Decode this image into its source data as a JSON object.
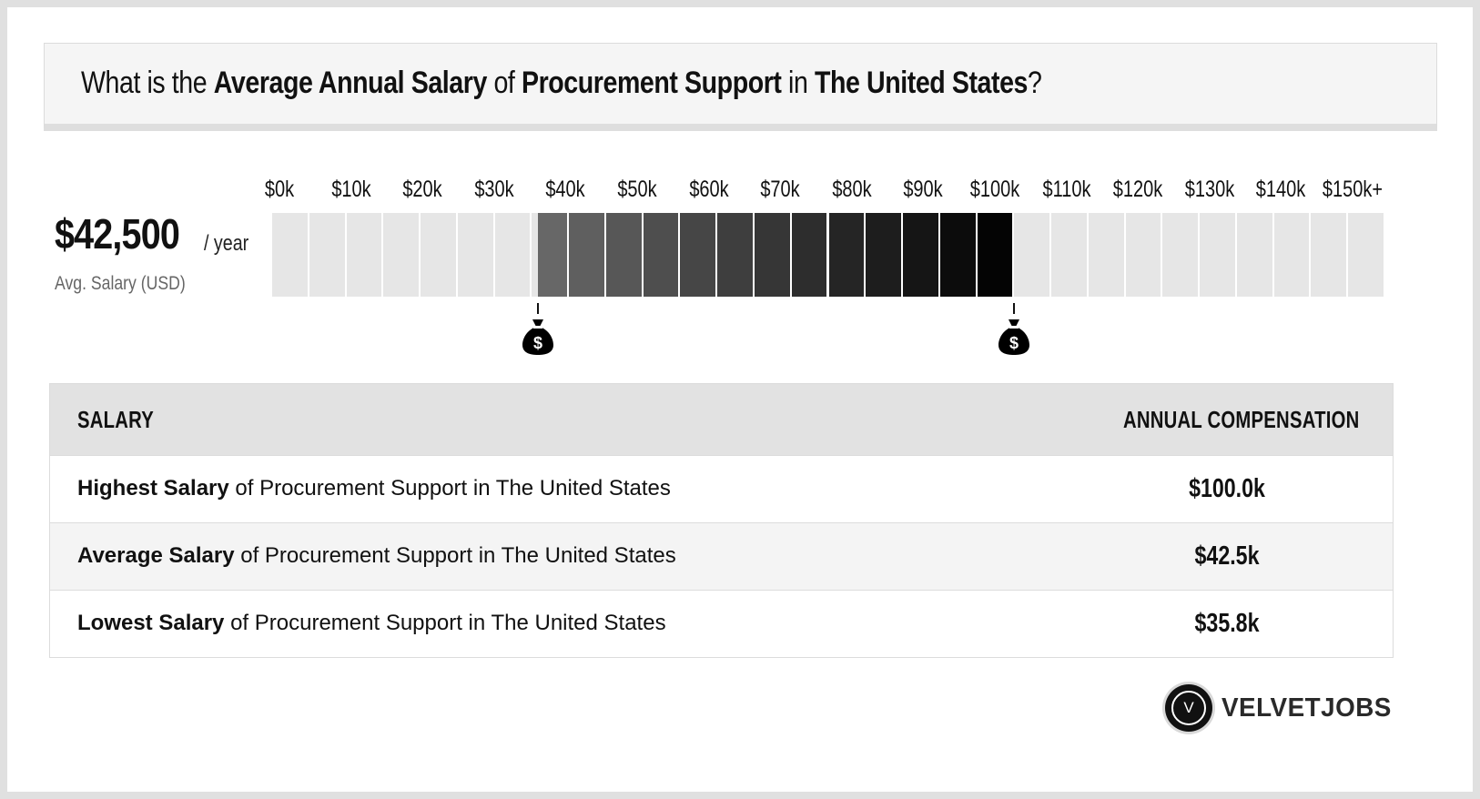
{
  "title": {
    "prefix": "What is the ",
    "metric": "Average Annual Salary",
    "of": " of ",
    "job": "Procurement Support",
    "in": " in ",
    "location": "The United States",
    "suffix": "?"
  },
  "summary": {
    "amount": "$42,500",
    "unit": "/ year",
    "caption": "Avg. Salary (USD)"
  },
  "chart_data": {
    "type": "bar",
    "orientation": "horizontal-range",
    "x_tick_labels": [
      "$0k",
      "$10k",
      "$20k",
      "$30k",
      "$40k",
      "$50k",
      "$60k",
      "$70k",
      "$80k",
      "$90k",
      "$100k",
      "$110k",
      "$120k",
      "$130k",
      "$140k",
      "$150k+"
    ],
    "xlim": [
      0,
      150000
    ],
    "range": {
      "low": 35800,
      "high": 100000,
      "average": 42500
    },
    "colors": {
      "empty": "#e6e6e6",
      "gradient_start": "#6a6a6a",
      "gradient_end": "#000000"
    },
    "markers": [
      "money-bag-icon",
      "money-bag-icon"
    ]
  },
  "table": {
    "headers": {
      "salary": "SALARY",
      "comp": "ANNUAL COMPENSATION"
    },
    "rows": [
      {
        "bold": "Highest Salary",
        "rest": " of Procurement Support in The United States",
        "value": "$100.0k"
      },
      {
        "bold": "Average Salary",
        "rest": " of Procurement Support in The United States",
        "value": "$42.5k"
      },
      {
        "bold": "Lowest Salary",
        "rest": " of Procurement Support in The United States",
        "value": "$35.8k"
      }
    ]
  },
  "brand": {
    "logo_letter": "V",
    "name": "VELVETJOBS"
  }
}
